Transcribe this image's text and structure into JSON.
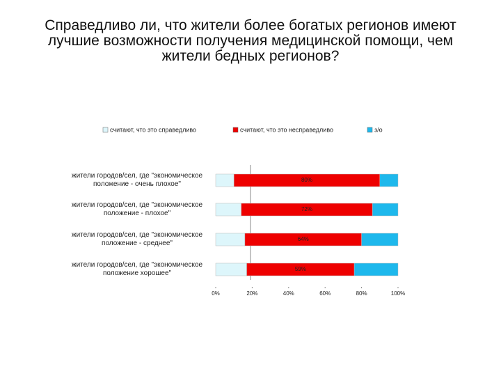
{
  "chart_data": {
    "type": "stacked-bar-horizontal",
    "title": "Справедливо ли, что жители более богатых регионов имеют лучшие возможности получения медицинской помощи, чем жители бедных регионов?",
    "categories": [
      "жители городов/сел, где \"экономическое положение - очень плохое\"",
      "жители городов/сел, где \"экономическое положение - плохое\"",
      "жители городов/сел, где \"экономическое положение - среднее\"",
      "жители городов/сел, где \"экономическое положение хорошее\""
    ],
    "series": [
      {
        "name": "считают, что это справедливо",
        "color": "#ddf6fb",
        "values": [
          10,
          14,
          16,
          17
        ]
      },
      {
        "name": "считают, что это несправедливо",
        "color": "#ee0000",
        "values": [
          80,
          72,
          64,
          59
        ],
        "value_labels": [
          "80%",
          "72%",
          "64%",
          "59%"
        ]
      },
      {
        "name": "з/о",
        "color": "#1eb8ec",
        "values": [
          10,
          14,
          20,
          24
        ]
      }
    ],
    "xlim": [
      0,
      100
    ],
    "xticks": [
      {
        "value": 0,
        "label": "0%"
      },
      {
        "value": 20,
        "label": "20%"
      },
      {
        "value": 40,
        "label": "40%"
      },
      {
        "value": 60,
        "label": "60%"
      },
      {
        "value": 80,
        "label": "80%"
      },
      {
        "value": 100,
        "label": "100%"
      }
    ],
    "legend": "top"
  }
}
